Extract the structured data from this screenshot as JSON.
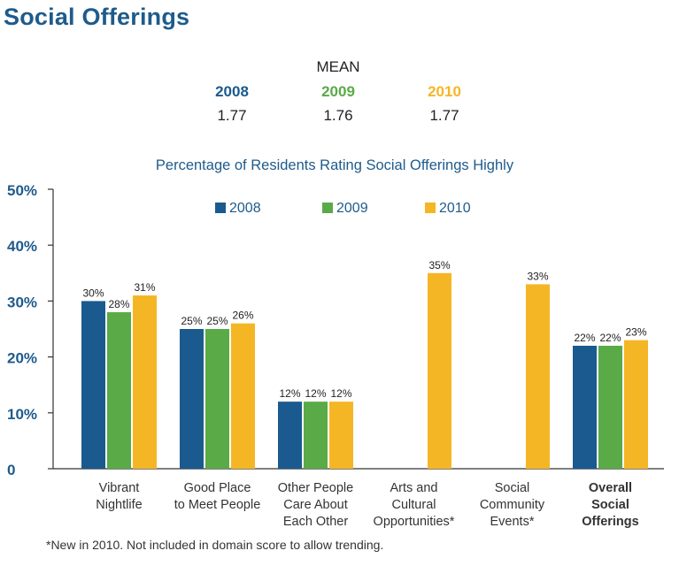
{
  "page": {
    "title": "Social Offerings",
    "footnote": "*New in 2010. Not included in domain score to allow trending."
  },
  "mean": {
    "label": "MEAN",
    "columns": [
      {
        "year": "2008",
        "value": "1.77",
        "color": "#1a5a8e"
      },
      {
        "year": "2009",
        "value": "1.76",
        "color": "#5aaa47"
      },
      {
        "year": "2010",
        "value": "1.77",
        "color": "#f5b625"
      }
    ]
  },
  "chart_data": {
    "type": "bar",
    "title": "Percentage of Residents Rating Social Offerings Highly",
    "xlabel": "",
    "ylabel": "",
    "ylim": [
      0,
      50
    ],
    "yticks": [
      0,
      10,
      20,
      30,
      40,
      50
    ],
    "ytick_labels": [
      "0",
      "10%",
      "20%",
      "30%",
      "40%",
      "50%"
    ],
    "grid": false,
    "legend_position": "top",
    "categories": [
      "Vibrant Nightlife",
      "Good Place to Meet People",
      "Other People Care About Each Other",
      "Arts and Cultural Opportunities*",
      "Social Community Events*",
      "Overall Social Offerings"
    ],
    "category_label_lines": [
      [
        "Vibrant",
        "Nightlife"
      ],
      [
        "Good Place",
        "to Meet People"
      ],
      [
        "Other People",
        "Care About",
        "Each Other"
      ],
      [
        "Arts and",
        "Cultural",
        "Opportunities*"
      ],
      [
        "Social",
        "Community",
        "Events*"
      ],
      [
        "Overall",
        "Social",
        "Offerings"
      ]
    ],
    "bold_categories": [
      5
    ],
    "series": [
      {
        "name": "2008",
        "color": "#1a5a8e",
        "values": [
          30,
          25,
          12,
          null,
          null,
          22
        ]
      },
      {
        "name": "2009",
        "color": "#5aaa47",
        "values": [
          28,
          25,
          12,
          null,
          null,
          22
        ]
      },
      {
        "name": "2010",
        "color": "#f5b625",
        "values": [
          31,
          26,
          12,
          35,
          33,
          23
        ]
      }
    ],
    "data_label_suffix": "%",
    "colors": {
      "axis": "#333333",
      "title": "#1e5b8c",
      "ytick": "#1e5b8c",
      "label": "#333333"
    }
  }
}
